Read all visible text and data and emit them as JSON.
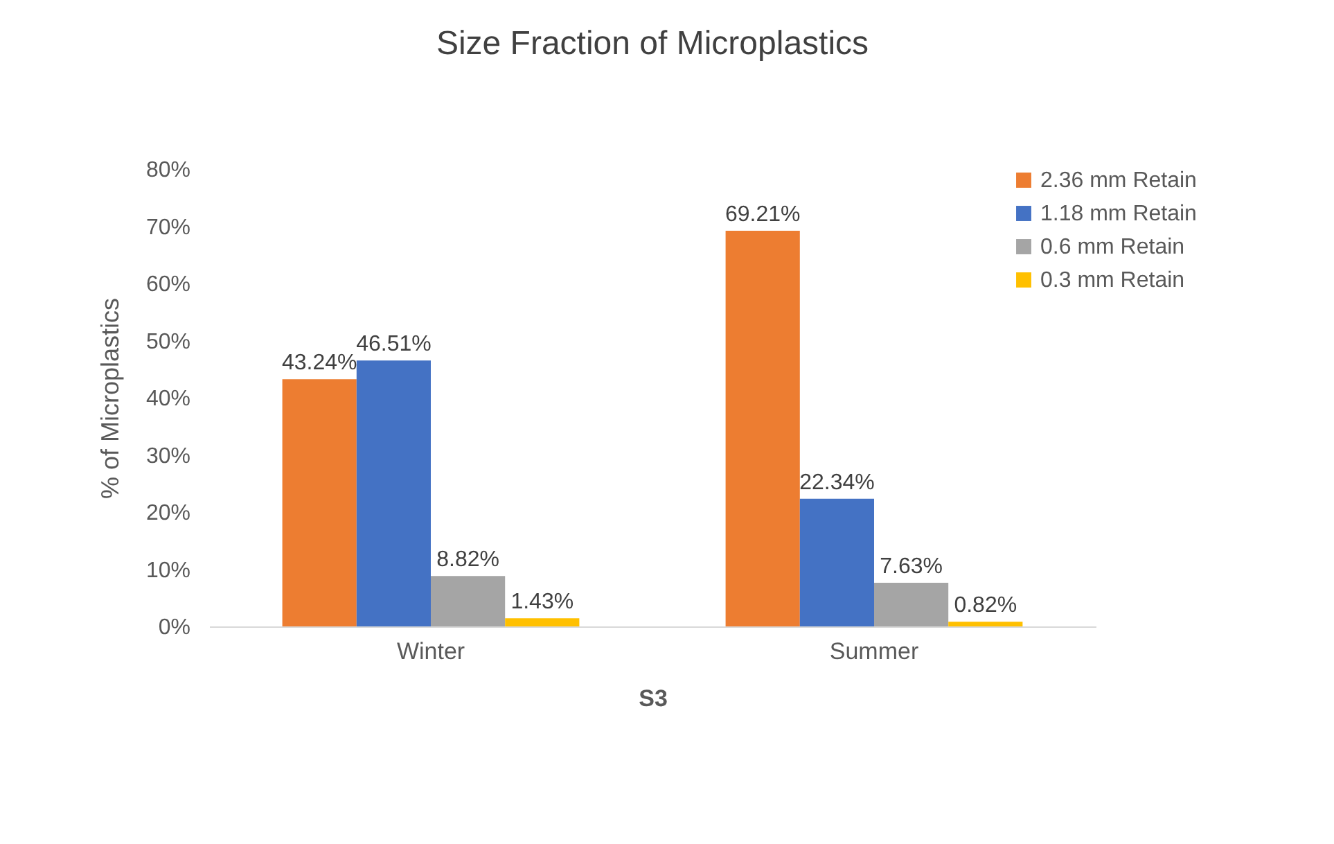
{
  "chart_data": {
    "type": "bar",
    "title": "Size Fraction of Microplastics",
    "xlabel": "S3",
    "ylabel": "% of Microplastics",
    "categories": [
      "Winter",
      "Summer"
    ],
    "series": [
      {
        "name": "2.36 mm Retain",
        "color": "#ed7d31",
        "values": [
          43.24,
          69.21
        ],
        "value_labels": [
          "43.24%",
          "69.21%"
        ]
      },
      {
        "name": "1.18 mm Retain",
        "color": "#4472c4",
        "values": [
          46.51,
          22.34
        ],
        "value_labels": [
          "46.51%",
          "22.34%"
        ]
      },
      {
        "name": "0.6 mm Retain",
        "color": "#a5a5a5",
        "values": [
          8.82,
          7.63
        ],
        "value_labels": [
          "8.82%",
          "7.63%"
        ]
      },
      {
        "name": "0.3 mm Retain",
        "color": "#ffc000",
        "values": [
          1.43,
          0.82
        ],
        "value_labels": [
          "1.43%",
          "0.82%"
        ]
      }
    ],
    "ylim": [
      0,
      80
    ],
    "yticks": [
      {
        "value": 0,
        "label": "0%"
      },
      {
        "value": 10,
        "label": "10%"
      },
      {
        "value": 20,
        "label": "20%"
      },
      {
        "value": 30,
        "label": "30%"
      },
      {
        "value": 40,
        "label": "40%"
      },
      {
        "value": 50,
        "label": "50%"
      },
      {
        "value": 60,
        "label": "60%"
      },
      {
        "value": 70,
        "label": "70%"
      },
      {
        "value": 80,
        "label": "80%"
      }
    ],
    "legend": "right"
  }
}
